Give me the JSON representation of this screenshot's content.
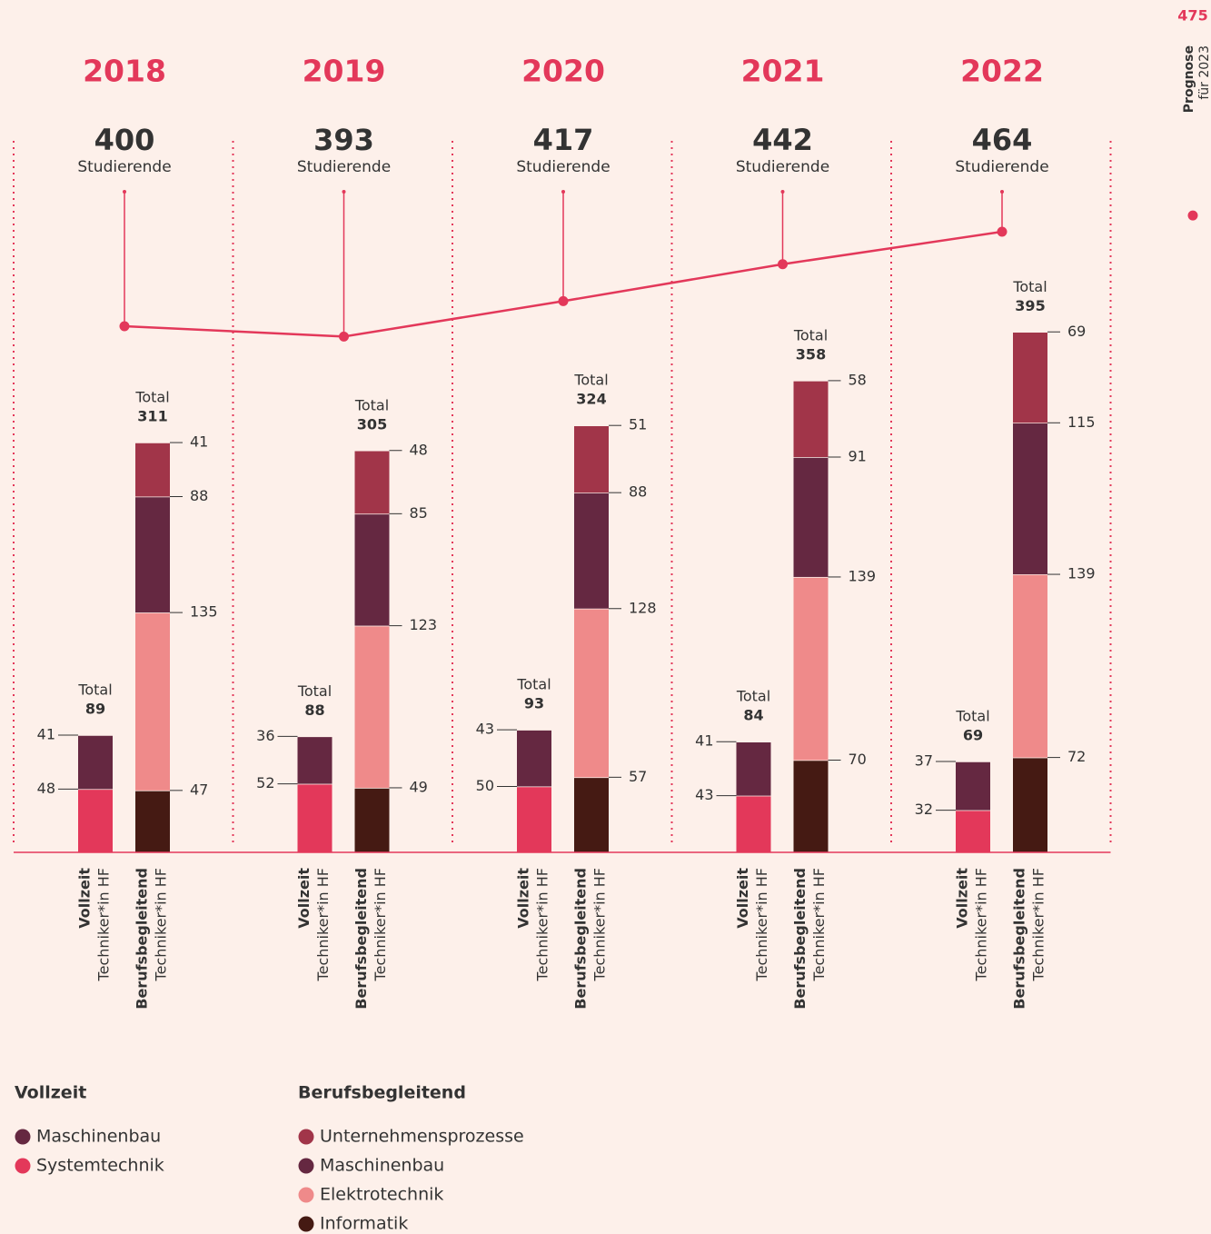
{
  "chart_data": {
    "type": "stacked-bar-line",
    "categories": [
      "2018",
      "2019",
      "2020",
      "2021",
      "2022"
    ],
    "totals_label": "Studierende",
    "totals": [
      400,
      393,
      417,
      442,
      464
    ],
    "line_color": "#e3385a",
    "forecast": {
      "value": 475,
      "title": "Prognose",
      "subtitle": "für 2023"
    },
    "groups": [
      {
        "name": "Vollzeit",
        "sublabel": "Techniker*in HF",
        "total_label": "Total",
        "totals": [
          89,
          88,
          93,
          84,
          69
        ],
        "series": [
          {
            "name": "Maschinenbau",
            "color": "#652841",
            "values": [
              41,
              36,
              43,
              41,
              37
            ]
          },
          {
            "name": "Systemtechnik",
            "color": "#e3385a",
            "values": [
              48,
              52,
              50,
              43,
              32
            ]
          }
        ]
      },
      {
        "name": "Berufsbegleitend",
        "sublabel": "Techniker*in HF",
        "total_label": "Total",
        "totals": [
          311,
          305,
          324,
          358,
          395
        ],
        "series": [
          {
            "name": "Unternehmensprozesse",
            "color": "#a13549",
            "values": [
              41,
              48,
              51,
              58,
              69
            ]
          },
          {
            "name": "Maschinenbau",
            "color": "#652841",
            "values": [
              88,
              85,
              88,
              91,
              115
            ]
          },
          {
            "name": "Elektrotechnik",
            "color": "#ef8a8a",
            "values": [
              135,
              123,
              128,
              139,
              139
            ]
          },
          {
            "name": "Informatik",
            "color": "#451a13",
            "values": [
              47,
              49,
              57,
              70,
              72
            ]
          }
        ]
      }
    ]
  }
}
